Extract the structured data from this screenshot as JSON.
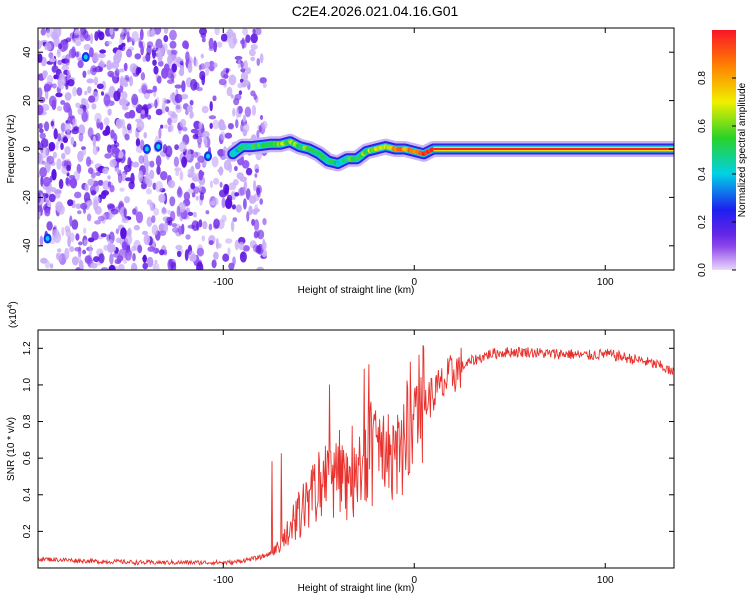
{
  "title": "C2E4.2026.021.04.16.G01",
  "colors": {
    "axis": "#000000",
    "snr_line": "#e8312c",
    "ridge_core": "#ff2020",
    "speckle": "#6a18e8"
  },
  "chart_data": [
    {
      "type": "heatmap",
      "xlabel": "Height of straight line (km)",
      "ylabel": "Frequency (Hz)",
      "xlim": [
        -197,
        136
      ],
      "ylim": [
        -50,
        50
      ],
      "xticks": [
        -100,
        0,
        100
      ],
      "yticks": [
        -40,
        -20,
        0,
        20,
        40
      ],
      "xtick_labels": [
        "-100",
        "0",
        "100"
      ],
      "ytick_labels": [
        "-40",
        "-20",
        "0",
        "20",
        "40"
      ],
      "ridge": {
        "x": [
          -95,
          -90,
          -85,
          -80,
          -75,
          -70,
          -65,
          -60,
          -55,
          -50,
          -45,
          -40,
          -35,
          -30,
          -25,
          -20,
          -15,
          -10,
          -5,
          0,
          5,
          10,
          136
        ],
        "freq": [
          -2,
          1,
          1,
          1.5,
          2,
          2,
          3,
          1,
          0,
          -2,
          -5,
          -6,
          -4,
          -4,
          -1,
          0,
          1,
          0,
          0,
          -1,
          -2,
          0,
          0
        ],
        "amplitude": [
          0.4,
          0.5,
          0.5,
          0.55,
          0.55,
          0.6,
          0.6,
          0.55,
          0.55,
          0.5,
          0.45,
          0.45,
          0.5,
          0.55,
          0.6,
          0.65,
          0.7,
          0.8,
          0.85,
          0.9,
          0.95,
          0.97,
          1.0
        ]
      },
      "colorbar": {
        "label": "Normalized spectral amplitude",
        "range": [
          0,
          1
        ],
        "ticks": [
          0.0,
          0.2,
          0.4,
          0.6,
          0.8
        ],
        "tick_labels": [
          "0.0",
          "0.2",
          "0.4",
          "0.6",
          "0.8"
        ]
      }
    },
    {
      "type": "line",
      "xlabel": "Height of straight line (km)",
      "ylabel": "SNR (10 * v/v)",
      "multiplier": "(x10",
      "multiplier_exp": "4",
      "multiplier_close": ")",
      "xlim": [
        -197,
        136
      ],
      "ylim": [
        0,
        1.3
      ],
      "xticks": [
        -100,
        0,
        100
      ],
      "yticks": [
        0.2,
        0.4,
        0.6,
        0.8,
        1.0,
        1.2
      ],
      "xtick_labels": [
        "-100",
        "0",
        "100"
      ],
      "ytick_labels": [
        "0.2",
        "0.4",
        "0.6",
        "0.8",
        "1.0",
        "1.2"
      ],
      "series": [
        {
          "name": "SNR",
          "x": [
            -197,
            -185,
            -175,
            -165,
            -155,
            -145,
            -135,
            -125,
            -115,
            -105,
            -95,
            -90,
            -85,
            -80,
            -75,
            -70,
            -65,
            -60,
            -55,
            -50,
            -45,
            -40,
            -35,
            -30,
            -25,
            -20,
            -15,
            -10,
            -5,
            0,
            5,
            10,
            15,
            20,
            25,
            30,
            35,
            40,
            50,
            60,
            70,
            80,
            90,
            100,
            110,
            120,
            130,
            136
          ],
          "values": [
            0.05,
            0.045,
            0.04,
            0.035,
            0.035,
            0.03,
            0.03,
            0.03,
            0.03,
            0.03,
            0.03,
            0.04,
            0.05,
            0.06,
            0.08,
            0.12,
            0.2,
            0.3,
            0.38,
            0.45,
            0.5,
            0.52,
            0.5,
            0.55,
            0.6,
            0.65,
            0.62,
            0.6,
            0.7,
            0.85,
            0.9,
            0.95,
            1.0,
            1.06,
            1.1,
            1.13,
            1.15,
            1.17,
            1.18,
            1.18,
            1.17,
            1.17,
            1.16,
            1.17,
            1.15,
            1.13,
            1.1,
            1.06
          ]
        }
      ]
    }
  ]
}
